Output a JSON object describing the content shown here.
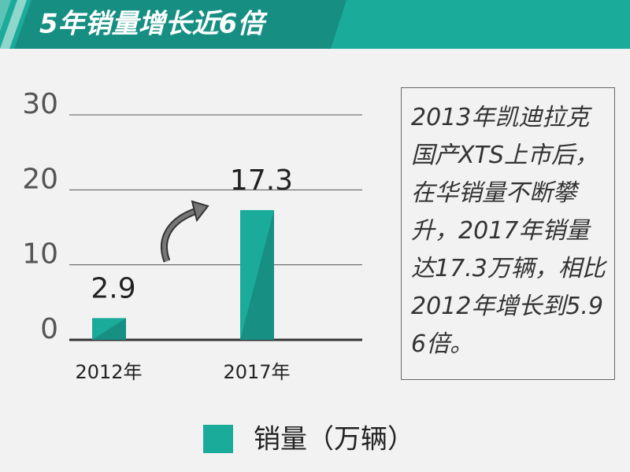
{
  "chart_data": {
    "type": "bar",
    "title": "5年销量增长近6倍",
    "categories": [
      "2012年",
      "2017年"
    ],
    "series": [
      {
        "name": "销量（万辆）",
        "color": "#1aab9b",
        "values": [
          2.9,
          17.3
        ]
      }
    ],
    "ylim": [
      0,
      30
    ],
    "yticks": [
      0,
      10,
      20,
      30
    ],
    "grid": true,
    "annotation": "2013年凯迪拉克国产XTS上市后，在华销量不断攀升，2017年销量达17.3万辆，相比2012年增长到5.96倍。",
    "legend_position": "bottom"
  }
}
